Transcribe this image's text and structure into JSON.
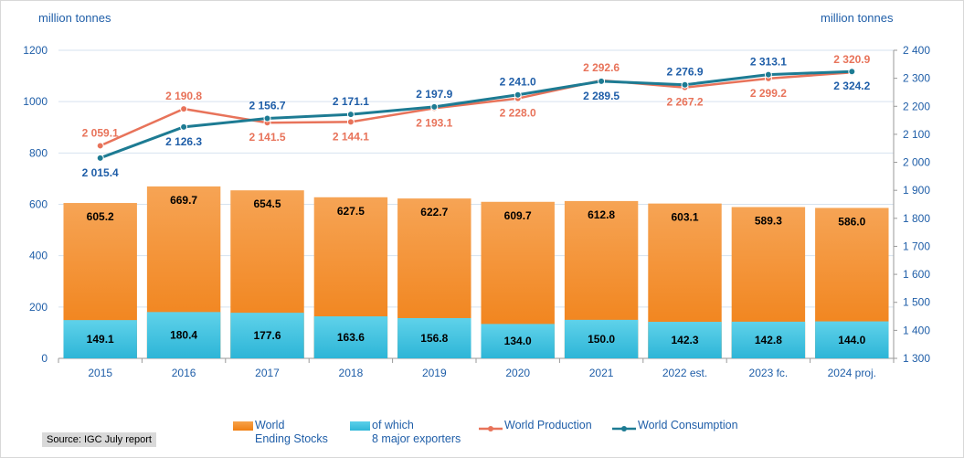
{
  "chart_data": {
    "type": "bar",
    "categories": [
      "2015",
      "2016",
      "2017",
      "2018",
      "2019",
      "2020",
      "2021",
      "2022 est.",
      "2023 fc.",
      "2024 proj."
    ],
    "left_axis": {
      "label": "million tonnes",
      "range": [
        0,
        1200
      ],
      "ticks": [
        0,
        200,
        400,
        600,
        800,
        1000,
        1200
      ]
    },
    "right_axis": {
      "label": "million tonnes",
      "range": [
        1300,
        2400
      ],
      "ticks": [
        1300,
        1400,
        1500,
        1600,
        1700,
        1800,
        1900,
        2000,
        2100,
        2200,
        2300,
        2400
      ],
      "tick_labels": [
        "1 300",
        "1 400",
        "1 500",
        "1 600",
        "1 700",
        "1 800",
        "1 900",
        "2 000",
        "2 100",
        "2 200",
        "2 300",
        "2 400"
      ]
    },
    "series": [
      {
        "name": "World Ending Stocks",
        "legend_lines": [
          "World",
          "Ending Stocks"
        ],
        "kind": "bar",
        "axis": "left",
        "color": "#f28a25",
        "values": [
          605.2,
          669.7,
          654.5,
          627.5,
          622.7,
          609.7,
          612.8,
          603.1,
          589.3,
          586.0
        ],
        "labels": [
          "605.2",
          "669.7",
          "654.5",
          "627.5",
          "622.7",
          "609.7",
          "612.8",
          "603.1",
          "589.3",
          "586.0"
        ]
      },
      {
        "name": "of which 8 major exporters",
        "legend_lines": [
          "of which",
          "8 major exporters"
        ],
        "kind": "bar",
        "axis": "left",
        "color": "#42c3e0",
        "values": [
          149.1,
          180.4,
          177.6,
          163.6,
          156.8,
          134.0,
          150.0,
          142.3,
          142.8,
          144.0
        ],
        "labels": [
          "149.1",
          "180.4",
          "177.6",
          "163.6",
          "156.8",
          "134.0",
          "150.0",
          "142.3",
          "142.8",
          "144.0"
        ]
      },
      {
        "name": "World Production",
        "kind": "line",
        "axis": "right",
        "color": "#e8735a",
        "values": [
          2059.1,
          2190.8,
          2141.5,
          2144.1,
          2193.1,
          2228.0,
          2292.6,
          2267.2,
          2299.2,
          2320.9
        ],
        "labels": [
          "2 059.1",
          "2 190.8",
          "2 141.5",
          "2 144.1",
          "2 193.1",
          "2 228.0",
          "2 292.6",
          "2 267.2",
          "2 299.2",
          "2 320.9"
        ],
        "label_pos": [
          "above",
          "above",
          "below",
          "below",
          "below",
          "below",
          "above",
          "below",
          "below",
          "above"
        ]
      },
      {
        "name": "World Consumption",
        "kind": "line",
        "axis": "right",
        "color": "#1d7b93",
        "label_color": "#1f5ea8",
        "values": [
          2015.4,
          2126.3,
          2156.7,
          2171.1,
          2197.9,
          2241.0,
          2289.5,
          2276.9,
          2313.1,
          2324.2
        ],
        "labels": [
          "2 015.4",
          "2 126.3",
          "2 156.7",
          "2 171.1",
          "2 197.9",
          "2 241.0",
          "2 289.5",
          "2 276.9",
          "2 313.1",
          "2 324.2"
        ],
        "label_pos": [
          "below",
          "below",
          "above",
          "above",
          "above",
          "above",
          "below",
          "above",
          "above",
          "below"
        ]
      }
    ],
    "source": "Source: IGC July report",
    "grid": true,
    "legend_position": "bottom"
  }
}
